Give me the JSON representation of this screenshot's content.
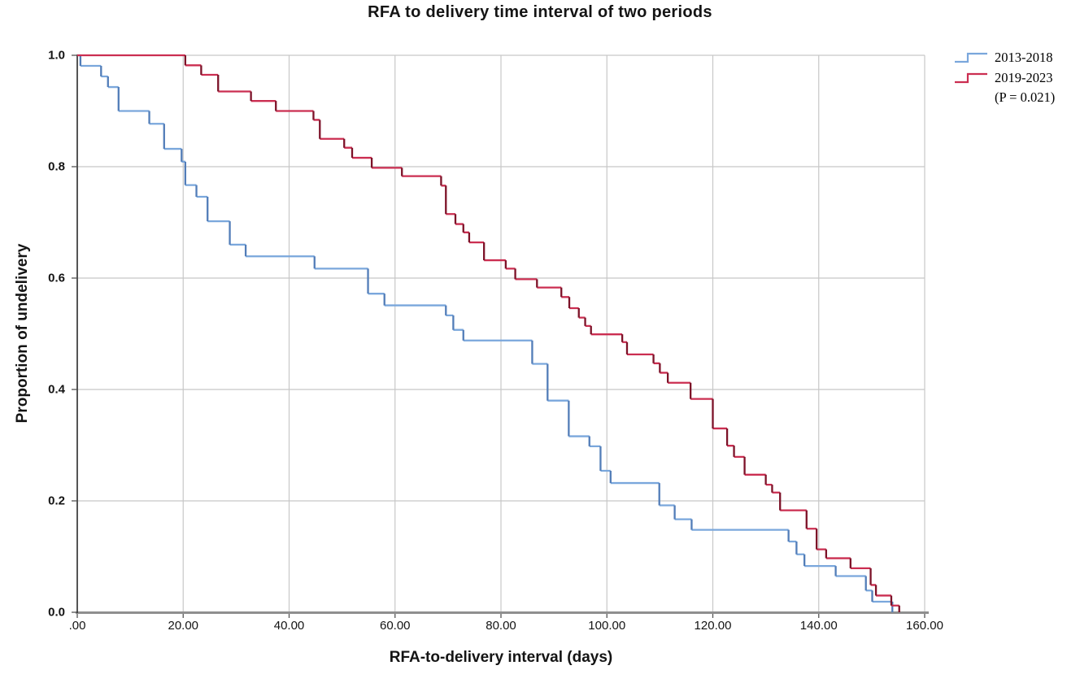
{
  "chart_data": {
    "type": "line",
    "subtype": "kaplan-meier-step-survival",
    "title": "RFA to delivery time interval of two periods",
    "xlabel": "RFA-to-delivery interval (days)",
    "ylabel": "Proportion of undelivery",
    "xlim": [
      0,
      160
    ],
    "ylim": [
      0.0,
      1.0
    ],
    "grid": true,
    "legend_position": "top-right-outside",
    "x_ticks": [
      ".00",
      "20.00",
      "40.00",
      "60.00",
      "80.00",
      "100.00",
      "120.00",
      "140.00",
      "160.00"
    ],
    "y_ticks": [
      "0.0",
      "0.2",
      "0.4",
      "0.6",
      "0.8",
      "1.0"
    ],
    "series": [
      {
        "name": "2013-2018",
        "color": "#7aa7dc",
        "color_dark": "#527db8",
        "start": [
          0,
          1.0
        ],
        "steps": [
          [
            0.6,
            0.981
          ],
          [
            4.5,
            0.962
          ],
          [
            5.8,
            0.943
          ],
          [
            7.8,
            0.9
          ],
          [
            13.6,
            0.877
          ],
          [
            16.4,
            0.832
          ],
          [
            19.7,
            0.809
          ],
          [
            20.4,
            0.767
          ],
          [
            22.5,
            0.746
          ],
          [
            24.6,
            0.702
          ],
          [
            28.8,
            0.66
          ],
          [
            31.8,
            0.639
          ],
          [
            44.8,
            0.617
          ],
          [
            54.9,
            0.572
          ],
          [
            58.0,
            0.551
          ],
          [
            69.6,
            0.533
          ],
          [
            71.0,
            0.507
          ],
          [
            72.9,
            0.488
          ],
          [
            85.9,
            0.446
          ],
          [
            88.8,
            0.38
          ],
          [
            92.8,
            0.316
          ],
          [
            96.7,
            0.298
          ],
          [
            98.8,
            0.254
          ],
          [
            100.7,
            0.232
          ],
          [
            109.9,
            0.192
          ],
          [
            112.8,
            0.167
          ],
          [
            116.0,
            0.148
          ],
          [
            134.3,
            0.127
          ],
          [
            135.8,
            0.104
          ],
          [
            137.3,
            0.083
          ],
          [
            143.2,
            0.065
          ],
          [
            148.9,
            0.039
          ],
          [
            150.1,
            0.019
          ],
          [
            153.9,
            0.0
          ]
        ]
      },
      {
        "name": "2019-2023",
        "color": "#cb2e51",
        "color_dark": "#7c1228",
        "start": [
          0,
          1.0
        ],
        "steps": [
          [
            20.4,
            0.982
          ],
          [
            23.4,
            0.965
          ],
          [
            26.6,
            0.935
          ],
          [
            32.8,
            0.918
          ],
          [
            37.5,
            0.9
          ],
          [
            44.6,
            0.884
          ],
          [
            45.8,
            0.85
          ],
          [
            50.4,
            0.834
          ],
          [
            51.9,
            0.816
          ],
          [
            55.6,
            0.798
          ],
          [
            61.3,
            0.783
          ],
          [
            68.7,
            0.766
          ],
          [
            69.6,
            0.715
          ],
          [
            71.4,
            0.697
          ],
          [
            72.9,
            0.682
          ],
          [
            74.0,
            0.664
          ],
          [
            76.8,
            0.632
          ],
          [
            80.9,
            0.617
          ],
          [
            82.7,
            0.598
          ],
          [
            86.8,
            0.583
          ],
          [
            91.4,
            0.566
          ],
          [
            92.9,
            0.546
          ],
          [
            94.7,
            0.529
          ],
          [
            95.9,
            0.514
          ],
          [
            97.0,
            0.499
          ],
          [
            102.9,
            0.485
          ],
          [
            103.8,
            0.463
          ],
          [
            108.8,
            0.447
          ],
          [
            110.0,
            0.43
          ],
          [
            111.5,
            0.412
          ],
          [
            115.8,
            0.383
          ],
          [
            120.0,
            0.33
          ],
          [
            122.7,
            0.299
          ],
          [
            124.0,
            0.279
          ],
          [
            126.0,
            0.247
          ],
          [
            130.0,
            0.229
          ],
          [
            131.2,
            0.215
          ],
          [
            132.7,
            0.183
          ],
          [
            137.7,
            0.15
          ],
          [
            139.6,
            0.113
          ],
          [
            141.4,
            0.097
          ],
          [
            146.0,
            0.079
          ],
          [
            149.8,
            0.049
          ],
          [
            150.8,
            0.03
          ],
          [
            153.7,
            0.012
          ],
          [
            155.2,
            0.0
          ]
        ]
      }
    ]
  },
  "legend": {
    "items": [
      {
        "label": "2013-2018"
      },
      {
        "label": "2019-2023"
      }
    ],
    "note": "(P = 0.021)"
  },
  "colors": {
    "grid": "#c7c7c7",
    "left_axis": "#2a2a2a",
    "bottom_axis": "#8f8f8f",
    "tick": "#555555",
    "text": "#141414",
    "background": "#ffffff"
  }
}
